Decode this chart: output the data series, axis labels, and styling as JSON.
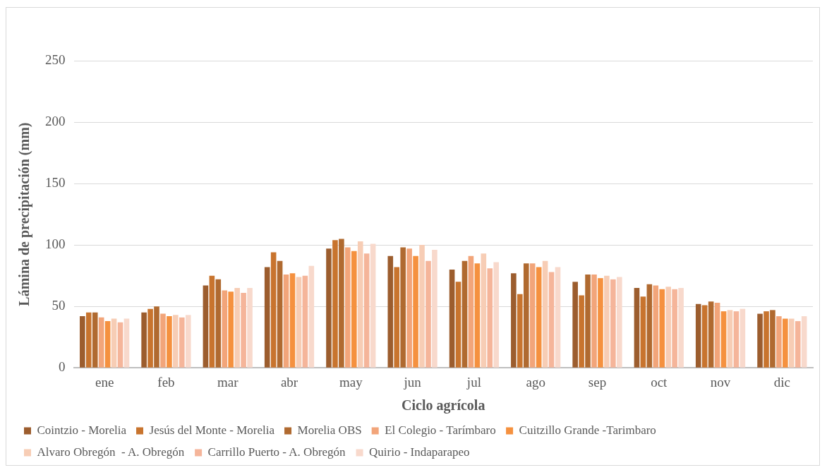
{
  "chart_data": {
    "type": "bar",
    "xlabel": "Ciclo agrícola",
    "ylabel": "Lámina de precipitación (mm)",
    "categories": [
      "ene",
      "feb",
      "mar",
      "abr",
      "may",
      "jun",
      "jul",
      "ago",
      "sep",
      "oct",
      "nov",
      "dic"
    ],
    "series": [
      {
        "name": "Cointzio - Morelia",
        "color": "#9c5d2e",
        "values": [
          42,
          45,
          67,
          82,
          97,
          91,
          80,
          77,
          70,
          65,
          52,
          44
        ]
      },
      {
        "name": "Jesús del Monte - Morelia",
        "color": "#c8742e",
        "values": [
          45,
          48,
          75,
          94,
          104,
          82,
          70,
          60,
          59,
          58,
          51,
          46
        ]
      },
      {
        "name": "Morelia OBS",
        "color": "#b06a30",
        "values": [
          45,
          50,
          72,
          87,
          105,
          98,
          87,
          85,
          76,
          68,
          54,
          47
        ]
      },
      {
        "name": "El Colegio - Tarímbaro",
        "color": "#f2a57a",
        "values": [
          41,
          44,
          63,
          76,
          98,
          97,
          91,
          85,
          76,
          67,
          53,
          42
        ]
      },
      {
        "name": "Cuitzillo Grande -Tarimbaro",
        "color": "#f5913f",
        "values": [
          38,
          42,
          62,
          77,
          95,
          91,
          85,
          82,
          73,
          64,
          46,
          40
        ]
      },
      {
        "name": "Alvaro Obregón  - A. Obregón",
        "color": "#f7cdb5",
        "values": [
          40,
          43,
          65,
          74,
          103,
          100,
          93,
          87,
          75,
          66,
          47,
          40
        ]
      },
      {
        "name": "Carrillo Puerto - A. Obregón",
        "color": "#f5b59a",
        "values": [
          37,
          41,
          61,
          75,
          93,
          87,
          81,
          78,
          72,
          64,
          46,
          38
        ]
      },
      {
        "name": "Quirio - Indaparapeo",
        "color": "#f8d9cc",
        "values": [
          40,
          43,
          65,
          83,
          101,
          96,
          86,
          82,
          74,
          65,
          48,
          42
        ]
      }
    ],
    "ylim": [
      0,
      250
    ],
    "yticks": [
      0,
      50,
      100,
      150,
      200,
      250
    ],
    "grid": "y",
    "legend": "bottom"
  }
}
